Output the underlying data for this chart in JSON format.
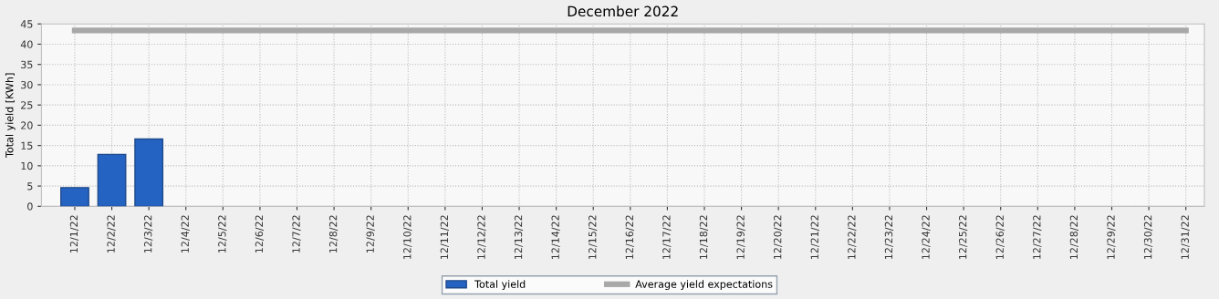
{
  "chart_data": {
    "type": "bar",
    "title": "December 2022",
    "ylabel": "Total yield [KWh]",
    "categories": [
      "12/1/22",
      "12/2/22",
      "12/3/22",
      "12/4/22",
      "12/5/22",
      "12/6/22",
      "12/7/22",
      "12/8/22",
      "12/9/22",
      "12/10/22",
      "12/11/22",
      "12/12/22",
      "12/13/22",
      "12/14/22",
      "12/15/22",
      "12/16/22",
      "12/17/22",
      "12/18/22",
      "12/19/22",
      "12/20/22",
      "12/21/22",
      "12/22/22",
      "12/23/22",
      "12/24/22",
      "12/25/22",
      "12/26/22",
      "12/27/22",
      "12/28/22",
      "12/29/22",
      "12/30/22",
      "12/31/22"
    ],
    "series": [
      {
        "name": "Total yield",
        "color": "#2563c2",
        "values": [
          4.6,
          12.8,
          16.6,
          null,
          null,
          null,
          null,
          null,
          null,
          null,
          null,
          null,
          null,
          null,
          null,
          null,
          null,
          null,
          null,
          null,
          null,
          null,
          null,
          null,
          null,
          null,
          null,
          null,
          null,
          null,
          null
        ]
      },
      {
        "name": "Average yield expectations",
        "type": "line",
        "color": "#a8a8a8",
        "values": [
          43.4,
          43.4,
          43.4,
          43.4,
          43.4,
          43.4,
          43.4,
          43.4,
          43.4,
          43.4,
          43.4,
          43.4,
          43.4,
          43.4,
          43.4,
          43.4,
          43.4,
          43.4,
          43.4,
          43.4,
          43.4,
          43.4,
          43.4,
          43.4,
          43.4,
          43.4,
          43.4,
          43.4,
          43.4,
          43.4,
          43.4
        ]
      }
    ],
    "ylim": [
      0,
      45
    ],
    "yticks": [
      0,
      5,
      10,
      15,
      20,
      25,
      30,
      35,
      40,
      45
    ],
    "grid": true,
    "legend": "bottom"
  }
}
